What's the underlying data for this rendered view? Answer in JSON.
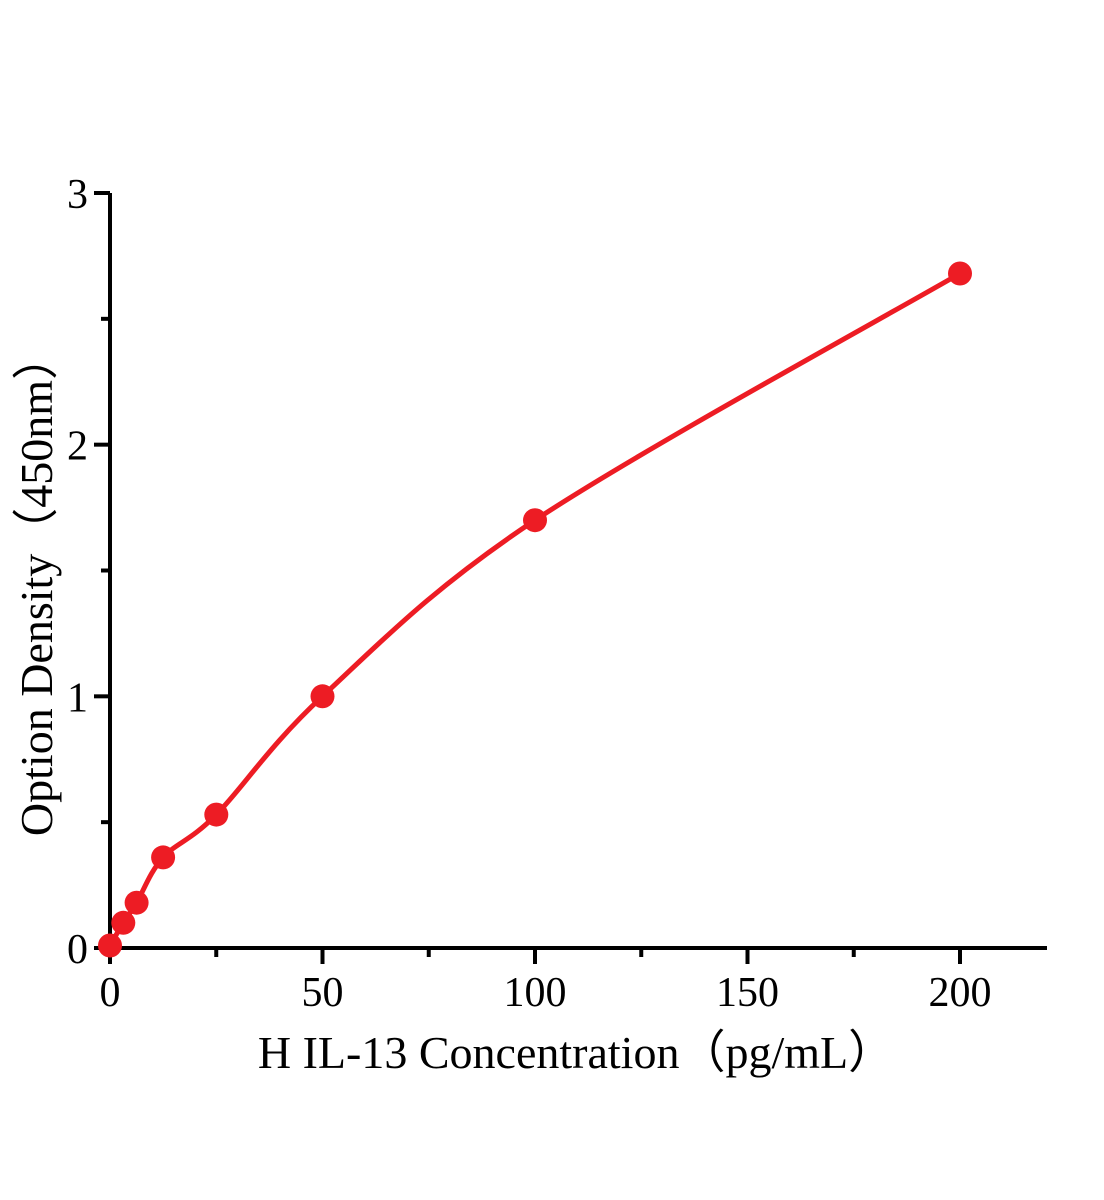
{
  "figure": {
    "background": "#ffffff"
  },
  "chart_data": {
    "type": "line",
    "title": "",
    "xlabel": "H IL-13 Concentration（pg/mL）",
    "ylabel": "Option Density（450nm）",
    "x": [
      0,
      3.125,
      6.25,
      12.5,
      25,
      50,
      100,
      200
    ],
    "y": [
      0.01,
      0.1,
      0.18,
      0.36,
      0.53,
      1.0,
      1.7,
      2.68
    ],
    "xlim": [
      0,
      220
    ],
    "ylim": [
      0,
      3
    ],
    "x_ticks_major": [
      0,
      50,
      100,
      150,
      200
    ],
    "x_ticks_minor": [
      25,
      75,
      125,
      175
    ],
    "y_ticks_major": [
      0,
      1,
      2,
      3
    ],
    "y_ticks_minor": [
      0.5,
      1.5,
      2.5
    ],
    "grid": false,
    "legend": "none",
    "marker": "circle",
    "curve_color": "#ED1C24",
    "marker_color": "#ED1C24",
    "axis_color": "#000000"
  }
}
